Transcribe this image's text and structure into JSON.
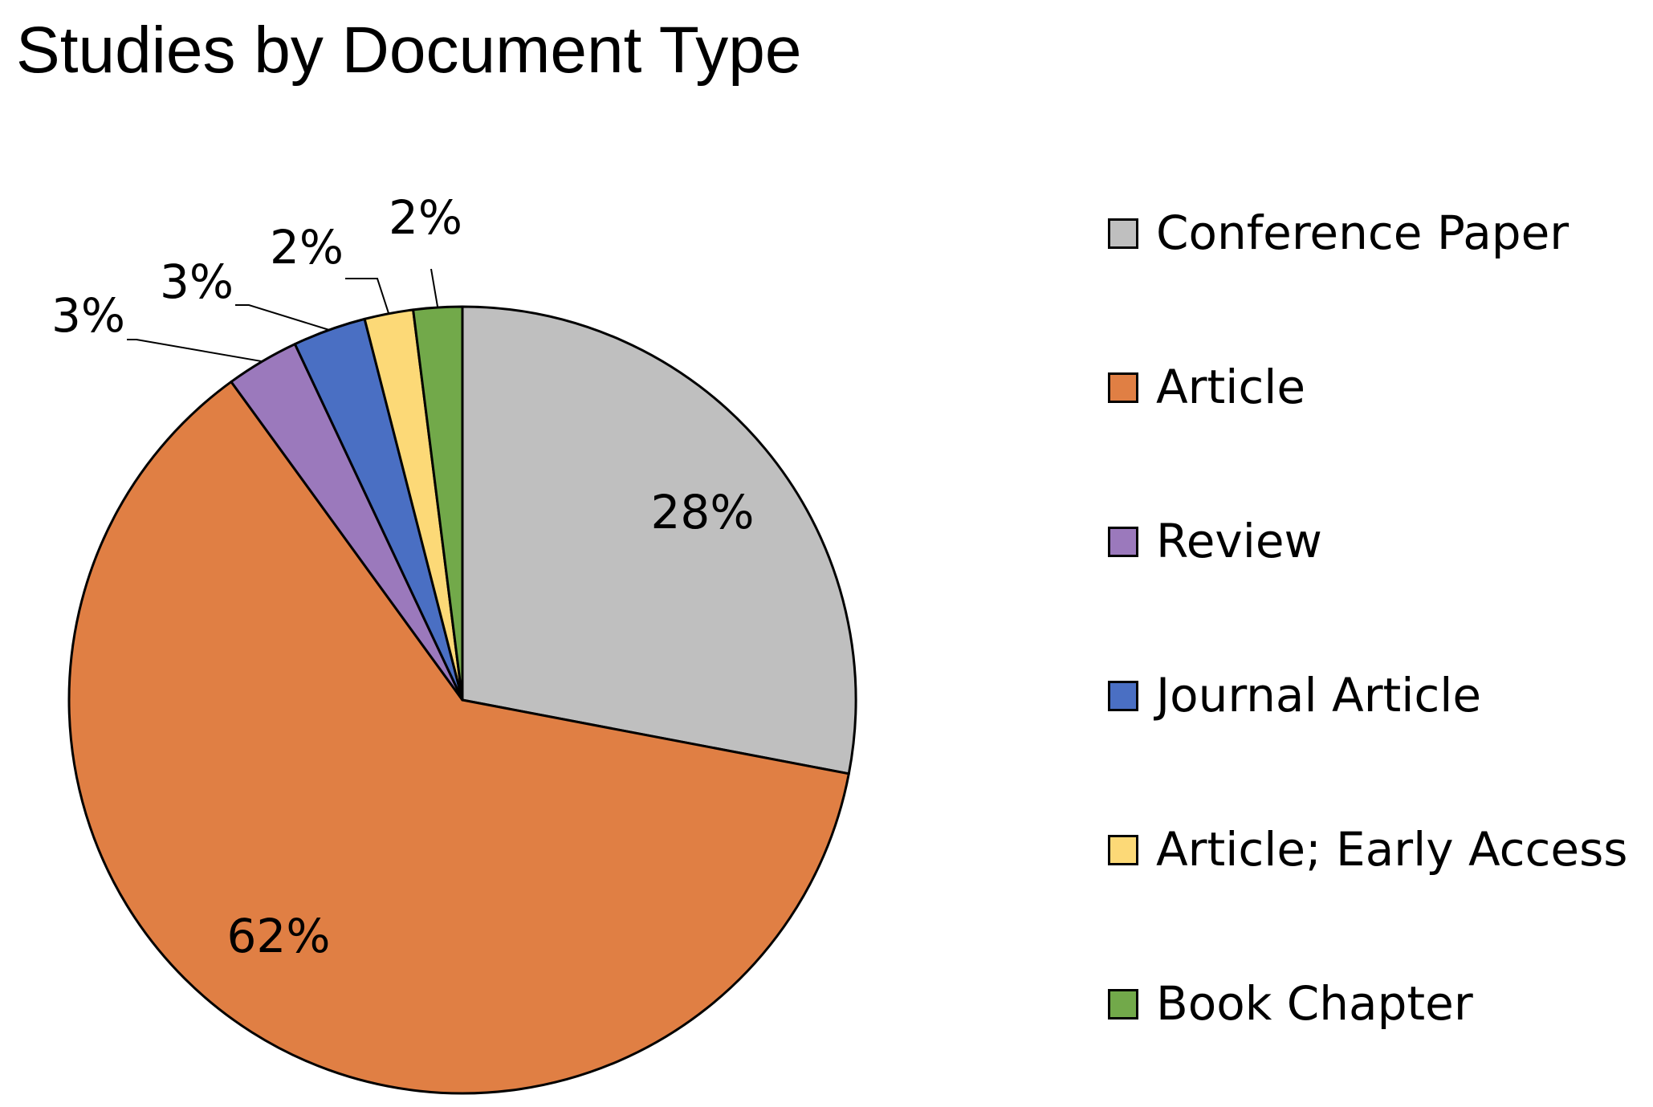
{
  "chart_data": {
    "type": "pie",
    "title": "Studies by Document Type",
    "categories": [
      "Conference Paper",
      "Article",
      "Review",
      "Journal Article",
      "Article; Early Access",
      "Book Chapter"
    ],
    "values": [
      28,
      62,
      3,
      3,
      2,
      2
    ],
    "data_labels": [
      "28%",
      "62%",
      "3%",
      "3%",
      "2%",
      "2%"
    ],
    "colors": [
      "#bfbfbf",
      "#e07f44",
      "#9b79bc",
      "#4a6fc3",
      "#fcd977",
      "#72a94a"
    ],
    "legend_position": "right"
  }
}
